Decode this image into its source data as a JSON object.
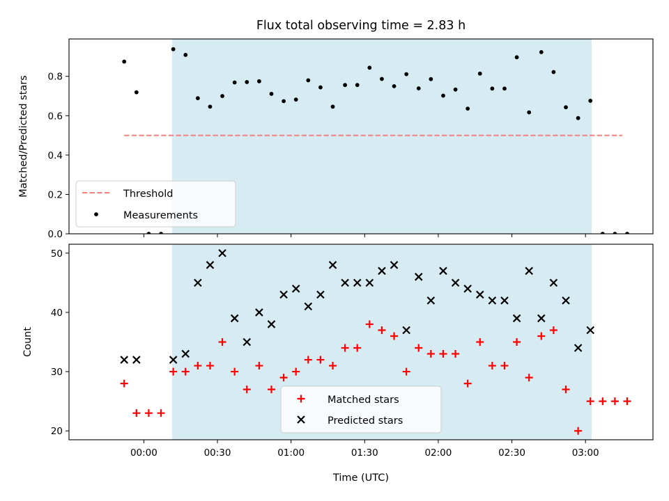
{
  "chart_data": [
    {
      "type": "scatter",
      "title": "Flux total observing time = 2.83 h",
      "ylabel": "Matched/Predicted stars",
      "xlabel": "",
      "ylim": [
        0,
        0.99
      ],
      "yticks": [
        0.0,
        0.2,
        0.4,
        0.6,
        0.8
      ],
      "ytick_labels": [
        "0.0",
        "0.2",
        "0.4",
        "0.6",
        "0.8"
      ],
      "xlim_min": [
        -30.5,
        207.5
      ],
      "shaded_region_min": [
        11.5,
        182.5
      ],
      "shaded_color": "#add8e6",
      "threshold": {
        "name": "Threshold",
        "value": 0.5,
        "x_range_min": [
          -8,
          195
        ],
        "color": "#f08080"
      },
      "series": [
        {
          "name": "Measurements",
          "color": "#000000",
          "x_min": [
            -8,
            -3,
            2,
            7,
            12,
            17,
            22,
            27,
            32,
            37,
            42,
            47,
            52,
            57,
            62,
            67,
            72,
            77,
            82,
            87,
            92,
            97,
            102,
            107,
            112,
            117,
            122,
            127,
            132,
            137,
            142,
            147,
            152,
            157,
            162,
            167,
            172,
            177,
            182,
            187,
            192,
            197
          ],
          "y": [
            0.875,
            0.719,
            0.0,
            0.0,
            0.938,
            0.909,
            0.689,
            0.646,
            0.7,
            0.769,
            0.771,
            0.775,
            0.711,
            0.674,
            0.682,
            0.78,
            0.744,
            0.646,
            0.756,
            0.756,
            0.844,
            0.787,
            0.75,
            0.811,
            0.739,
            0.786,
            0.702,
            0.733,
            0.636,
            0.814,
            0.738,
            0.738,
            0.897,
            0.617,
            0.923,
            0.822,
            0.643,
            0.588,
            0.676,
            0.0,
            0.0,
            0.0
          ]
        }
      ]
    },
    {
      "type": "scatter",
      "title": "",
      "ylabel": "Count",
      "xlabel": "Time (UTC)",
      "ylim": [
        18.5,
        51.5
      ],
      "yticks": [
        20,
        30,
        40,
        50
      ],
      "ytick_labels": [
        "20",
        "30",
        "40",
        "50"
      ],
      "xlim_min": [
        -30.5,
        207.5
      ],
      "xticks_min": [
        0,
        30,
        60,
        90,
        120,
        150,
        180
      ],
      "xtick_labels": [
        "00:00",
        "00:30",
        "01:00",
        "01:30",
        "02:00",
        "02:30",
        "03:00"
      ],
      "shaded_region_min": [
        11.5,
        182.5
      ],
      "shaded_color": "#add8e6",
      "series": [
        {
          "name": "Matched stars",
          "marker": "+",
          "color": "#ff0000",
          "x_min": [
            -8,
            -3,
            2,
            7,
            12,
            17,
            22,
            27,
            32,
            37,
            42,
            47,
            52,
            57,
            62,
            67,
            72,
            77,
            82,
            87,
            92,
            97,
            102,
            107,
            112,
            117,
            122,
            127,
            132,
            137,
            142,
            147,
            152,
            157,
            162,
            167,
            172,
            177,
            182,
            187,
            192,
            197
          ],
          "y": [
            28,
            23,
            23,
            23,
            30,
            30,
            31,
            31,
            35,
            30,
            27,
            31,
            27,
            29,
            30,
            32,
            32,
            31,
            34,
            34,
            38,
            37,
            36,
            30,
            34,
            33,
            33,
            33,
            28,
            35,
            31,
            31,
            35,
            29,
            36,
            37,
            27,
            20,
            25,
            25,
            25,
            25
          ]
        },
        {
          "name": "Predicted stars",
          "marker": "x",
          "color": "#000000",
          "x_min": [
            -8,
            -3,
            12,
            17,
            22,
            27,
            32,
            37,
            42,
            47,
            52,
            57,
            62,
            67,
            72,
            77,
            82,
            87,
            92,
            97,
            102,
            107,
            112,
            117,
            122,
            127,
            132,
            137,
            142,
            147,
            152,
            157,
            162,
            167,
            172,
            177,
            182
          ],
          "y": [
            32,
            32,
            32,
            33,
            45,
            48,
            50,
            39,
            35,
            40,
            38,
            43,
            44,
            41,
            43,
            48,
            45,
            45,
            45,
            47,
            48,
            37,
            46,
            42,
            47,
            45,
            44,
            43,
            42,
            42,
            39,
            47,
            39,
            45,
            42,
            34,
            37
          ]
        }
      ]
    }
  ]
}
